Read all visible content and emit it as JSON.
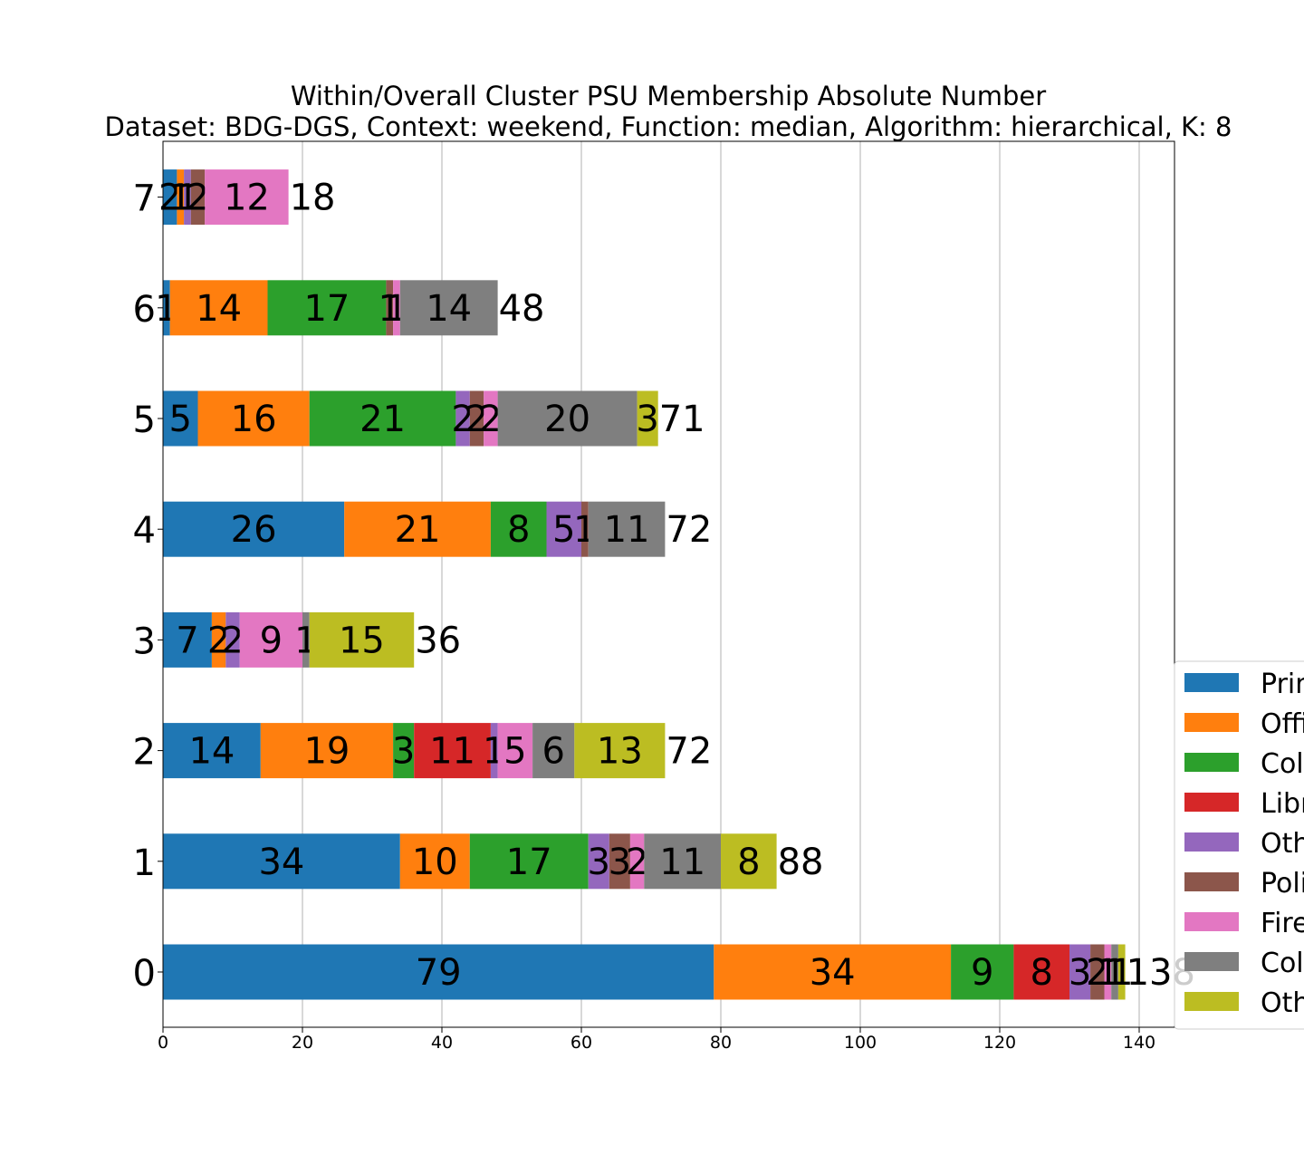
{
  "chart_data": {
    "type": "bar",
    "orientation": "horizontal",
    "stacked": true,
    "title": "Within/Overall Cluster PSU Membership Absolute Number",
    "subtitle": "Dataset: BDG-DGS, Context: weekend, Function: median, Algorithm: hierarchical, K: 8",
    "xlabel": "",
    "ylabel": "",
    "xlim": [
      0,
      145
    ],
    "xticks": [
      "0",
      "20",
      "40",
      "60",
      "80",
      "100",
      "120",
      "140"
    ],
    "grid": "vertical",
    "legend_position": "right, partially cut off",
    "categories": [
      "0",
      "1",
      "2",
      "3",
      "4",
      "5",
      "6",
      "7"
    ],
    "series": [
      {
        "name": "Prim",
        "color": "#1f77b4",
        "values": [
          79,
          34,
          14,
          7,
          26,
          5,
          1,
          2
        ]
      },
      {
        "name": "Offi",
        "color": "#ff7f0e",
        "values": [
          34,
          10,
          19,
          2,
          21,
          16,
          14,
          1
        ]
      },
      {
        "name": "Col",
        "color": "#2ca02c",
        "values": [
          9,
          17,
          3,
          0,
          8,
          21,
          17,
          0
        ]
      },
      {
        "name": "Libr",
        "color": "#d62728",
        "values": [
          8,
          0,
          11,
          0,
          0,
          0,
          0,
          0
        ]
      },
      {
        "name": "Oth",
        "color": "#9467bd",
        "values": [
          3,
          3,
          1,
          2,
          5,
          2,
          0,
          1
        ]
      },
      {
        "name": "Poli",
        "color": "#8c564b",
        "values": [
          2,
          3,
          0,
          0,
          1,
          2,
          1,
          2
        ]
      },
      {
        "name": "Fire",
        "color": "#e377c2",
        "values": [
          1,
          2,
          5,
          9,
          0,
          2,
          1,
          12
        ]
      },
      {
        "name": "Col",
        "color": "#7f7f7f",
        "values": [
          1,
          11,
          6,
          1,
          11,
          20,
          14,
          0
        ]
      },
      {
        "name": "Oth",
        "color": "#bcbd22",
        "values": [
          1,
          8,
          13,
          15,
          0,
          3,
          0,
          0
        ]
      }
    ],
    "totals": [
      138,
      88,
      72,
      36,
      72,
      71,
      48,
      18
    ]
  }
}
